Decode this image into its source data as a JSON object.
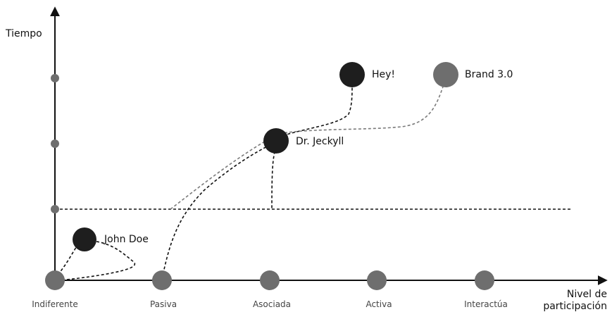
{
  "axes": {
    "y_label": "Tiempo",
    "x_label_line1": "Nivel de",
    "x_label_line2": "participación"
  },
  "categories": [
    "Indiferente",
    "Pasiva",
    "Asociada",
    "Activa",
    "Interactúa"
  ],
  "nodes": {
    "john": {
      "label": "John Doe",
      "color": "#1e1e1e"
    },
    "jeckyll": {
      "label": "Dr. Jeckyll",
      "color": "#1e1e1e"
    },
    "hey": {
      "label": "Hey!",
      "color": "#1e1e1e"
    },
    "brand": {
      "label": "Brand 3.0",
      "color": "#6e6e6e"
    }
  },
  "colors": {
    "axis": "#111111",
    "axis_dot": "#6e6e6e",
    "path_dark": "#111111",
    "path_gray": "#7a7a7a"
  }
}
